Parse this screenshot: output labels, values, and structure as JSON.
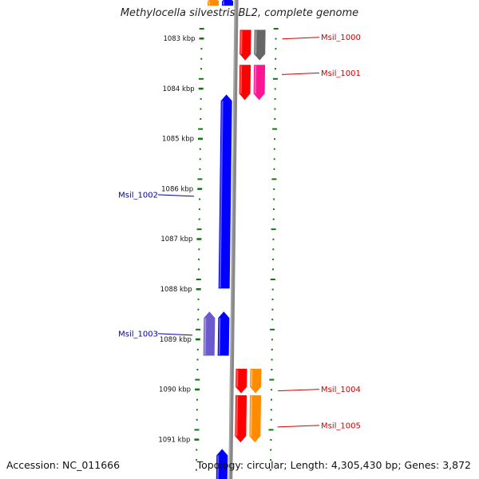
{
  "title": "Methylocella silvestris BL2, complete genome",
  "footer": {
    "accession": "Accession: NC_011666",
    "summary": "Topology: circular; Length: 4,305,430 bp; Genes: 3,872"
  },
  "colors": {
    "tick": "#117711",
    "backbone": "#888888",
    "plus_label": "#cc0000",
    "minus_label": "#0000aa"
  },
  "ticks": [
    {
      "label": "1083 kbp",
      "kbp": 1083
    },
    {
      "label": "1084 kbp",
      "kbp": 1084
    },
    {
      "label": "1085 kbp",
      "kbp": 1085
    },
    {
      "label": "1086 kbp",
      "kbp": 1086
    },
    {
      "label": "1087 kbp",
      "kbp": 1087
    },
    {
      "label": "1088 kbp",
      "kbp": 1088
    },
    {
      "label": "1089 kbp",
      "kbp": 1089
    },
    {
      "label": "1090 kbp",
      "kbp": 1090
    },
    {
      "label": "1091 kbp",
      "kbp": 1091
    }
  ],
  "features": [
    {
      "strand": "-",
      "track": 2,
      "start": 1082.17,
      "end": 1082.35,
      "color": "#ff8c00"
    },
    {
      "strand": "-",
      "track": 1,
      "start": 1082.17,
      "end": 1082.35,
      "color": "#0000ff"
    },
    {
      "strand": "+",
      "track": 1,
      "start": 1082.83,
      "end": 1083.44,
      "color": "#ff0000"
    },
    {
      "strand": "+",
      "track": 2,
      "start": 1082.83,
      "end": 1083.44,
      "color": "#666666"
    },
    {
      "strand": "+",
      "track": 1,
      "start": 1083.53,
      "end": 1084.23,
      "color": "#ff0000"
    },
    {
      "strand": "+",
      "track": 2,
      "start": 1083.53,
      "end": 1084.23,
      "color": "#ff1493"
    },
    {
      "strand": "-",
      "track": 1,
      "start": 1084.12,
      "end": 1087.99,
      "color": "#0000ff"
    },
    {
      "strand": "-",
      "track": 2,
      "start": 1088.45,
      "end": 1089.33,
      "color": "#6a5acd"
    },
    {
      "strand": "-",
      "track": 1,
      "start": 1088.45,
      "end": 1089.33,
      "color": "#0000ff"
    },
    {
      "strand": "+",
      "track": 1,
      "start": 1089.59,
      "end": 1090.08,
      "color": "#ff0000"
    },
    {
      "strand": "+",
      "track": 2,
      "start": 1089.59,
      "end": 1090.08,
      "color": "#ff8c00"
    },
    {
      "strand": "+",
      "track": 1,
      "start": 1090.12,
      "end": 1091.06,
      "color": "#ff0000"
    },
    {
      "strand": "+",
      "track": 2,
      "start": 1090.12,
      "end": 1091.06,
      "color": "#ff8c00"
    },
    {
      "strand": "-",
      "track": 1,
      "start": 1091.19,
      "end": 1091.85,
      "color": "#0000ff"
    }
  ],
  "gene_labels": [
    {
      "name": "Msil_1000",
      "strand": "+",
      "kbp": 1082.98
    },
    {
      "name": "Msil_1001",
      "strand": "+",
      "kbp": 1083.69
    },
    {
      "name": "Msil_1002",
      "strand": "-",
      "kbp": 1086.12
    },
    {
      "name": "Msil_1003",
      "strand": "-",
      "kbp": 1088.89
    },
    {
      "name": "Msil_1004",
      "strand": "+",
      "kbp": 1090.0
    },
    {
      "name": "Msil_1005",
      "strand": "+",
      "kbp": 1090.72
    }
  ]
}
